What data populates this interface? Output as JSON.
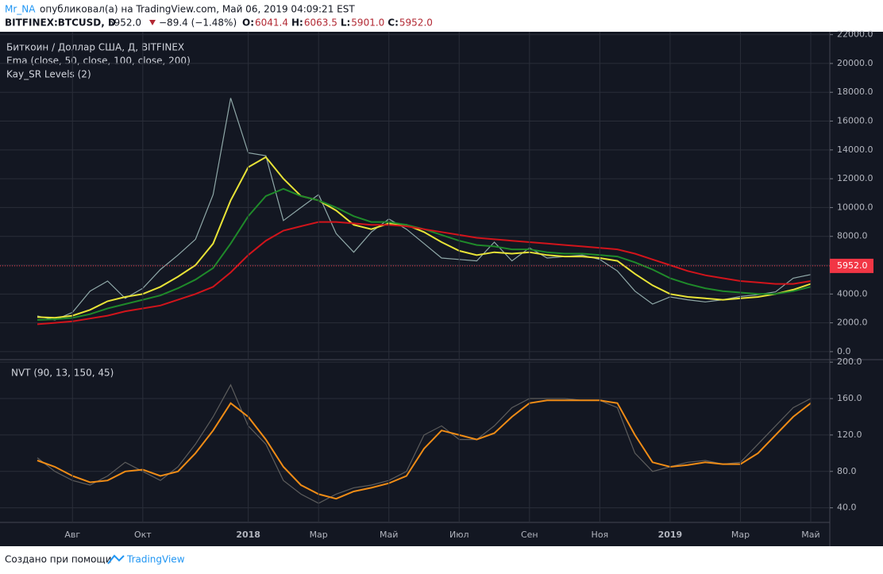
{
  "header": {
    "author": "Mr_NA",
    "published": "опубликовал(а) на TradingView.com, Май 06, 2019 04:09:21 EST",
    "symbol": "BITFINEX:BTCUSD, D",
    "last": "5952.0",
    "change": "−89.4 (−1.48%)",
    "ohlc": [
      {
        "label": "O:",
        "value": "6041.4"
      },
      {
        "label": "H:",
        "value": "6063.5"
      },
      {
        "label": "L:",
        "value": "5901.0"
      },
      {
        "label": "C:",
        "value": "5952.0"
      }
    ]
  },
  "chart_data": [
    {
      "type": "line",
      "title": "Биткоин / Доллар США, Д, BITFINEX",
      "indicators": [
        "Ema (close, 50, close, 100, close, 200)",
        "Kay_SR Levels (2)"
      ],
      "categories": [
        null,
        null,
        "Авг",
        null,
        null,
        null,
        "Окт",
        null,
        null,
        null,
        null,
        null,
        "2018",
        null,
        null,
        null,
        "Мар",
        null,
        null,
        null,
        "Май",
        null,
        null,
        null,
        "Июл",
        null,
        null,
        null,
        "Сен",
        null,
        null,
        null,
        "Ноя",
        null,
        null,
        null,
        "2019",
        null,
        null,
        null,
        "Мар",
        null,
        null,
        null,
        "Май"
      ],
      "series": [
        {
          "color": "#8fa8a8",
          "values": [
            2480,
            2200,
            2730,
            4200,
            4900,
            3700,
            4400,
            5700,
            6700,
            7800,
            10900,
            17600,
            13800,
            13600,
            9100,
            10000,
            10900,
            8200,
            6900,
            8300,
            9200,
            8500,
            7500,
            6500,
            6400,
            6300,
            7600,
            6300,
            7200,
            6500,
            6600,
            6700,
            6400,
            5600,
            4200,
            3300,
            3800,
            3600,
            3450,
            3600,
            3830,
            3950,
            4150,
            5100,
            5350
          ]
        },
        {
          "color": "#e8e337",
          "values": [
            2400,
            2350,
            2500,
            2900,
            3500,
            3800,
            4000,
            4500,
            5200,
            6000,
            7500,
            10500,
            12800,
            13500,
            12000,
            10800,
            10500,
            9800,
            8800,
            8500,
            8900,
            8800,
            8300,
            7600,
            7000,
            6700,
            6900,
            6800,
            6900,
            6700,
            6600,
            6600,
            6500,
            6300,
            5400,
            4600,
            4000,
            3800,
            3700,
            3600,
            3700,
            3800,
            4000,
            4300,
            4700
          ]
        },
        {
          "color": "#1f8a2a",
          "values": [
            2200,
            2250,
            2350,
            2600,
            3000,
            3300,
            3600,
            3900,
            4400,
            5000,
            5800,
            7500,
            9400,
            10800,
            11300,
            10800,
            10500,
            10000,
            9400,
            9000,
            9000,
            8800,
            8500,
            8100,
            7700,
            7400,
            7300,
            7100,
            7100,
            6900,
            6800,
            6800,
            6700,
            6600,
            6200,
            5700,
            5100,
            4700,
            4400,
            4200,
            4100,
            4000,
            4000,
            4200,
            4500
          ]
        },
        {
          "color": "#d1141b",
          "values": [
            1900,
            2000,
            2100,
            2300,
            2500,
            2800,
            3000,
            3200,
            3600,
            4000,
            4500,
            5500,
            6700,
            7700,
            8400,
            8700,
            9000,
            9000,
            8900,
            8800,
            8800,
            8700,
            8500,
            8300,
            8100,
            7900,
            7800,
            7700,
            7600,
            7500,
            7400,
            7300,
            7200,
            7100,
            6800,
            6400,
            6000,
            5600,
            5300,
            5100,
            4900,
            4800,
            4700,
            4700,
            4900
          ]
        }
      ],
      "last": {
        "value": 5952,
        "label": "5952.0",
        "color": "#f23645"
      },
      "ylim": [
        -500,
        22200
      ],
      "yticks": [
        {
          "value": 0,
          "label": "0.0"
        },
        {
          "value": 2000,
          "label": "2000.0"
        },
        {
          "value": 4000,
          "label": "4000.0"
        },
        {
          "value": 6000,
          "label": "6000.0"
        },
        {
          "value": 8000,
          "label": "8000.0"
        },
        {
          "value": 10000,
          "label": "10000.0"
        },
        {
          "value": 12000,
          "label": "12000.0"
        },
        {
          "value": 14000,
          "label": "14000.0"
        },
        {
          "value": 16000,
          "label": "16000.0"
        },
        {
          "value": 18000,
          "label": "18000.0"
        },
        {
          "value": 20000,
          "label": "20000.0"
        },
        {
          "value": 22000,
          "label": "22000.0"
        }
      ],
      "grid": true
    },
    {
      "type": "line",
      "title": "NVT (90, 13, 150, 45)",
      "series": [
        {
          "color": "#5d5d5d",
          "values": [
            95,
            80,
            70,
            65,
            75,
            90,
            80,
            70,
            85,
            110,
            140,
            175,
            130,
            110,
            70,
            55,
            45,
            55,
            62,
            65,
            70,
            80,
            120,
            130,
            115,
            115,
            130,
            150,
            160,
            160,
            160,
            158,
            158,
            150,
            100,
            80,
            85,
            90,
            92,
            88,
            90,
            110,
            130,
            150,
            160
          ]
        },
        {
          "color": "#f08c16",
          "values": [
            92,
            85,
            75,
            68,
            70,
            80,
            82,
            75,
            80,
            100,
            125,
            155,
            140,
            115,
            85,
            65,
            55,
            50,
            58,
            62,
            67,
            75,
            105,
            125,
            120,
            115,
            122,
            140,
            155,
            158,
            158,
            158,
            158,
            155,
            120,
            90,
            85,
            87,
            90,
            88,
            88,
            100,
            120,
            140,
            155
          ]
        }
      ],
      "ylim": [
        24,
        201
      ],
      "yticks": [
        {
          "value": 40,
          "label": "40.0"
        },
        {
          "value": 80,
          "label": "80.0"
        },
        {
          "value": 120,
          "label": "120.0"
        },
        {
          "value": 160,
          "label": "160.0"
        },
        {
          "value": 200,
          "label": "200.0"
        }
      ],
      "grid": true
    }
  ],
  "footer": {
    "text": "Создано при помощи",
    "brand": "TradingView"
  }
}
